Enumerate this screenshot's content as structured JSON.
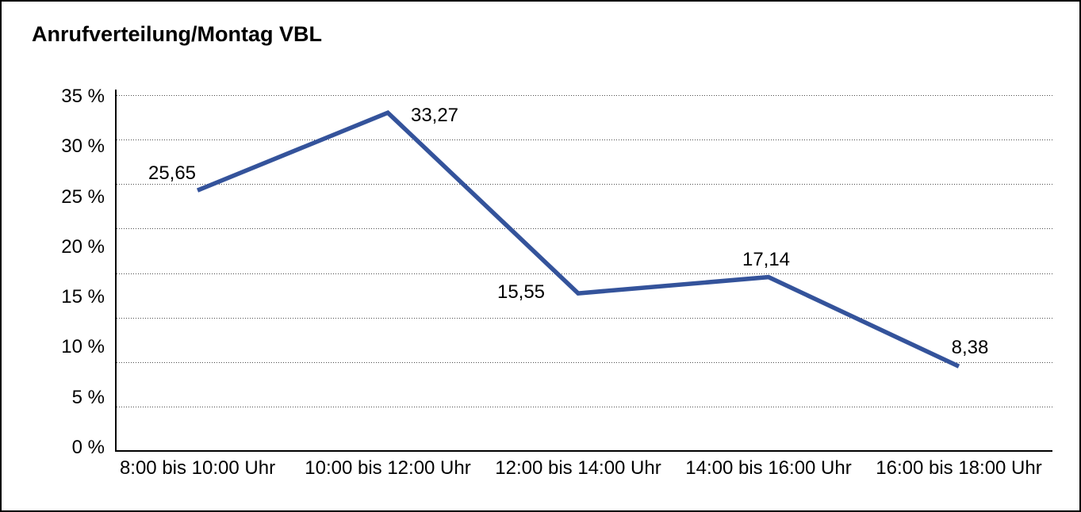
{
  "chart_data": {
    "type": "line",
    "title": "Anrufverteilung/Montag VBL",
    "categories": [
      "8:00 bis 10:00 Uhr",
      "10:00 bis 12:00 Uhr",
      "12:00 bis 14:00 Uhr",
      "14:00 bis 16:00 Uhr",
      "16:00 bis 18:00 Uhr"
    ],
    "values": [
      25.65,
      33.27,
      15.55,
      17.14,
      8.38
    ],
    "value_labels": [
      "25,65",
      "33,27",
      "15,55",
      "17,14",
      "8,38"
    ],
    "xlabel": "",
    "ylabel": "",
    "ylim": [
      0,
      35
    ],
    "y_tick_labels": [
      "35 %",
      "30 %",
      "25 %",
      "20 %",
      "15 %",
      "10 %",
      "5 %",
      "0 %"
    ],
    "grid": "horizontal dotted",
    "legend": "none",
    "line_color": "#34539B",
    "axis_color": "#000000",
    "text_color": "#000000",
    "background_color": "#ffffff"
  }
}
